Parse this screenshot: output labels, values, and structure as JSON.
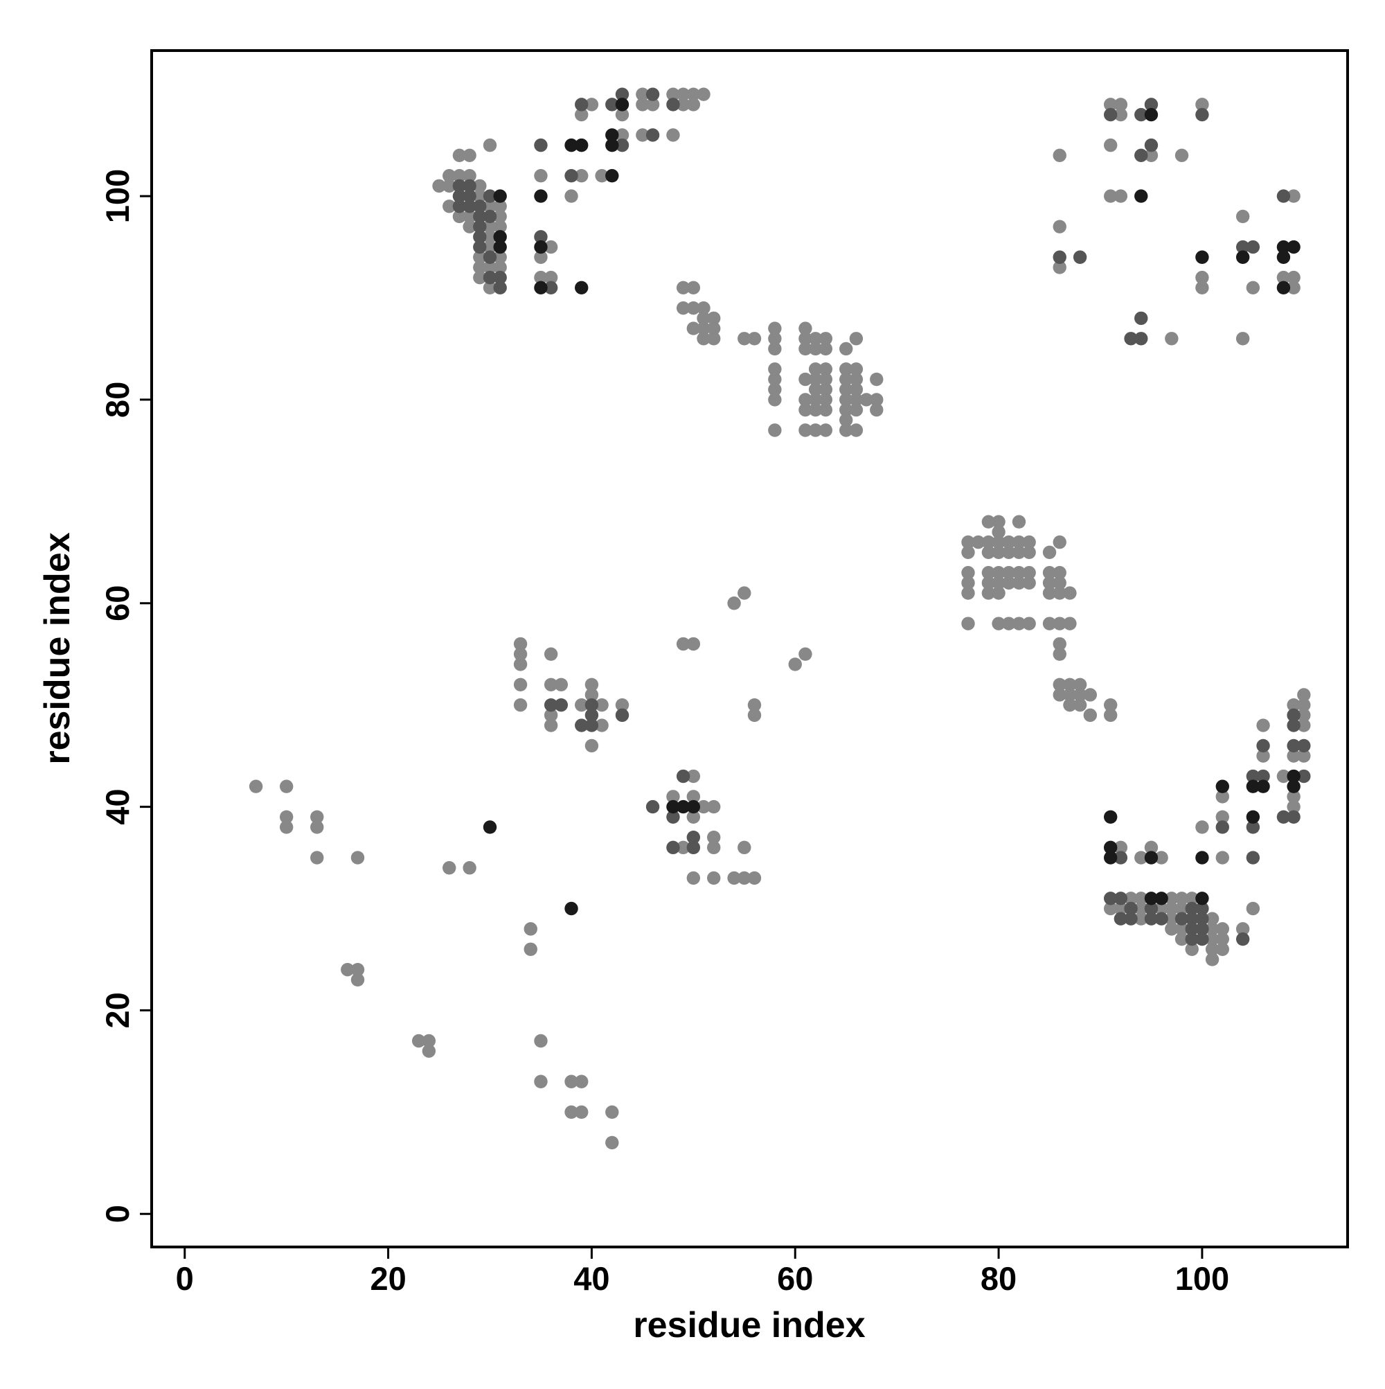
{
  "chart_data": {
    "type": "scatter",
    "xlabel": "residue index",
    "ylabel": "residue index",
    "xlim": [
      -3.25,
      114.3
    ],
    "ylim": [
      -3.25,
      114.3
    ],
    "xticks": [
      0,
      20,
      40,
      60,
      80,
      100
    ],
    "yticks": [
      0,
      20,
      40,
      60,
      80,
      100
    ],
    "grid": false,
    "series": [
      {
        "color": "#888888",
        "x": [
          7,
          10,
          10,
          10,
          13,
          13,
          13,
          17,
          16,
          17,
          17,
          23,
          24,
          24,
          26,
          28,
          34,
          34,
          35,
          35,
          38,
          39,
          38,
          39,
          42,
          42,
          33,
          33,
          33,
          33,
          33,
          36,
          36,
          37,
          36,
          36,
          39,
          40,
          40,
          41,
          41,
          43,
          40,
          48,
          50,
          50,
          50,
          51,
          52,
          49,
          52,
          52,
          55,
          50,
          52,
          54,
          55,
          56,
          49,
          50,
          54,
          55,
          56,
          56,
          60,
          61,
          25,
          26,
          27,
          28,
          26,
          29,
          26,
          29,
          30,
          31,
          27,
          28,
          31,
          28,
          30,
          31,
          30,
          30,
          29,
          31,
          29,
          30,
          31,
          29,
          30,
          27,
          28,
          30,
          35,
          36,
          35,
          35,
          36,
          39,
          38,
          41,
          39,
          40,
          43,
          43,
          45,
          45,
          46,
          45,
          48,
          49,
          50,
          51,
          49,
          50,
          48,
          49,
          50,
          49,
          50,
          51,
          51,
          52,
          50,
          51,
          52,
          51,
          52,
          55,
          56,
          58,
          58,
          58,
          58,
          58,
          58,
          58,
          58,
          61,
          61,
          62,
          63,
          61,
          62,
          63,
          62,
          63,
          61,
          62,
          63,
          62,
          63,
          61,
          62,
          63,
          61,
          62,
          63,
          61,
          62,
          63,
          65,
          66,
          65,
          66,
          65,
          66,
          65,
          66,
          65,
          66,
          67,
          68,
          65,
          66,
          68,
          68,
          65,
          66,
          65,
          79,
          80,
          82,
          80,
          77,
          78,
          79,
          80,
          81,
          82,
          83,
          86,
          77,
          79,
          80,
          81,
          82,
          83,
          85,
          77,
          79,
          80,
          81,
          82,
          83,
          85,
          86,
          77,
          79,
          80,
          81,
          82,
          83,
          85,
          86,
          77,
          79,
          80,
          85,
          86,
          87,
          77,
          80,
          81,
          82,
          83,
          85,
          86,
          87,
          86,
          86,
          86,
          87,
          88,
          86,
          87,
          88,
          89,
          87,
          88,
          91,
          89,
          91,
          86,
          86,
          86,
          91,
          92,
          92,
          91,
          91,
          92,
          95,
          98,
          100,
          97,
          100,
          100,
          104,
          105,
          104,
          109,
          108,
          109,
          109,
          92,
          94,
          95,
          96,
          93,
          94,
          97,
          98,
          99,
          91,
          92,
          94,
          96,
          97,
          98,
          94,
          97,
          101,
          97,
          98,
          101,
          102,
          98,
          101,
          102,
          99,
          101,
          102,
          101,
          104,
          100,
          102,
          102,
          102,
          105,
          106,
          106,
          108,
          109,
          109,
          110,
          109,
          110,
          110,
          110,
          109,
          110
        ],
        "y": [
          42,
          42,
          39,
          38,
          39,
          38,
          35,
          35,
          24,
          24,
          23,
          17,
          17,
          16,
          34,
          34,
          28,
          26,
          17,
          13,
          13,
          13,
          10,
          10,
          10,
          7,
          56,
          55,
          54,
          52,
          50,
          55,
          52,
          52,
          49,
          48,
          50,
          52,
          51,
          50,
          48,
          50,
          46,
          41,
          43,
          41,
          39,
          40,
          40,
          36,
          37,
          36,
          36,
          33,
          33,
          33,
          33,
          33,
          56,
          56,
          60,
          61,
          50,
          49,
          54,
          55,
          101,
          102,
          102,
          102,
          101,
          101,
          99,
          100,
          99,
          99,
          98,
          98,
          98,
          97,
          97,
          97,
          96,
          95,
          94,
          94,
          93,
          93,
          93,
          92,
          91,
          104,
          104,
          105,
          102,
          95,
          94,
          92,
          92,
          102,
          100,
          102,
          108,
          109,
          106,
          108,
          110,
          109,
          109,
          106,
          110,
          110,
          110,
          110,
          109,
          109,
          106,
          91,
          91,
          89,
          89,
          89,
          88,
          88,
          87,
          87,
          87,
          86,
          86,
          86,
          86,
          87,
          86,
          85,
          83,
          82,
          81,
          80,
          77,
          87,
          86,
          86,
          86,
          85,
          85,
          85,
          83,
          83,
          82,
          82,
          82,
          81,
          81,
          80,
          80,
          80,
          79,
          79,
          79,
          77,
          77,
          77,
          85,
          86,
          83,
          83,
          82,
          82,
          81,
          81,
          80,
          80,
          80,
          80,
          79,
          79,
          79,
          82,
          78,
          77,
          77,
          68,
          68,
          68,
          67,
          66,
          66,
          66,
          66,
          66,
          66,
          66,
          66,
          65,
          65,
          65,
          65,
          65,
          65,
          65,
          63,
          63,
          63,
          63,
          63,
          63,
          63,
          63,
          62,
          62,
          62,
          62,
          62,
          62,
          62,
          62,
          61,
          61,
          61,
          61,
          61,
          61,
          58,
          58,
          58,
          58,
          58,
          58,
          58,
          58,
          56,
          55,
          52,
          52,
          52,
          51,
          51,
          51,
          51,
          50,
          50,
          50,
          49,
          49,
          104,
          97,
          93,
          109,
          109,
          108,
          105,
          100,
          100,
          104,
          104,
          109,
          86,
          92,
          91,
          98,
          91,
          86,
          100,
          92,
          92,
          91,
          36,
          35,
          36,
          35,
          31,
          31,
          31,
          31,
          31,
          30,
          30,
          30,
          30,
          30,
          30,
          29,
          29,
          29,
          28,
          28,
          28,
          28,
          27,
          27,
          27,
          26,
          26,
          26,
          25,
          28,
          38,
          41,
          39,
          35,
          30,
          48,
          45,
          43,
          40,
          41,
          51,
          50,
          50,
          49,
          48,
          45,
          45
        ]
      },
      {
        "color": "#555555",
        "x": [
          36,
          37,
          40,
          40,
          40,
          39,
          43,
          46,
          48,
          49,
          48,
          50,
          50,
          27,
          28,
          27,
          28,
          30,
          27,
          28,
          29,
          29,
          30,
          29,
          29,
          29,
          30,
          30,
          31,
          31,
          35,
          35,
          36,
          38,
          39,
          42,
          43,
          43,
          46,
          46,
          48,
          86,
          88,
          91,
          94,
          95,
          95,
          94,
          100,
          94,
          93,
          94,
          104,
          105,
          108,
          92,
          91,
          92,
          93,
          95,
          99,
          100,
          92,
          93,
          95,
          96,
          98,
          99,
          100,
          99,
          100,
          99,
          100,
          104,
          102,
          105,
          106,
          105,
          105,
          106,
          110,
          108,
          109,
          109,
          109,
          109,
          110
        ],
        "y": [
          50,
          50,
          50,
          49,
          48,
          48,
          49,
          40,
          39,
          43,
          36,
          37,
          36,
          101,
          101,
          100,
          100,
          100,
          99,
          99,
          99,
          98,
          98,
          97,
          96,
          95,
          94,
          92,
          92,
          91,
          105,
          96,
          91,
          102,
          109,
          109,
          110,
          105,
          110,
          106,
          109,
          94,
          94,
          108,
          108,
          109,
          105,
          104,
          108,
          88,
          86,
          86,
          95,
          95,
          100,
          35,
          31,
          31,
          30,
          30,
          30,
          30,
          29,
          29,
          29,
          29,
          29,
          29,
          29,
          28,
          28,
          27,
          27,
          27,
          38,
          43,
          43,
          38,
          35,
          46,
          43,
          39,
          39,
          49,
          48,
          46,
          46
        ]
      },
      {
        "color": "#1a1a1a",
        "x": [
          30,
          38,
          48,
          49,
          50,
          31,
          31,
          31,
          35,
          35,
          35,
          39,
          38,
          39,
          42,
          43,
          42,
          42,
          95,
          94,
          100,
          104,
          108,
          109,
          108,
          108,
          91,
          91,
          91,
          95,
          95,
          96,
          100,
          100,
          102,
          105,
          106,
          105,
          109,
          109
        ],
        "y": [
          38,
          30,
          40,
          40,
          40,
          100,
          96,
          95,
          100,
          95,
          91,
          91,
          105,
          105,
          102,
          109,
          106,
          105,
          108,
          100,
          94,
          94,
          95,
          95,
          94,
          91,
          39,
          36,
          35,
          35,
          31,
          31,
          31,
          35,
          42,
          42,
          42,
          39,
          43,
          42
        ]
      }
    ]
  }
}
